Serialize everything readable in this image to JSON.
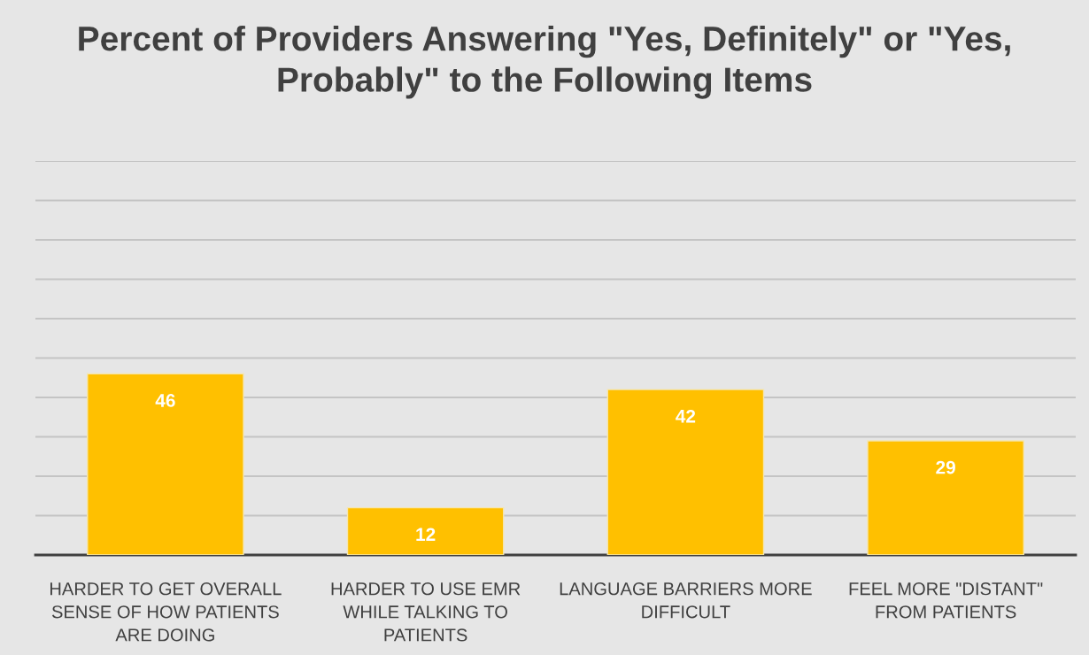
{
  "chart_data": {
    "type": "bar",
    "title": "Percent of Providers Answering \"Yes, Definitely\" or \"Yes, Probably\" to the Following Items",
    "categories": [
      "HARDER TO GET OVERALL SENSE OF HOW PATIENTS ARE DOING",
      "HARDER TO USE EMR WHILE TALKING TO PATIENTS",
      "LANGUAGE BARRIERS MORE DIFFICULT",
      "FEEL MORE \"DISTANT\" FROM PATIENTS"
    ],
    "values": [
      46,
      12,
      42,
      29
    ],
    "color": "#ffc000",
    "ylim": [
      0,
      100
    ],
    "yticks": [
      {
        "value": 0,
        "label": null
      },
      {
        "value": 10,
        "label": null
      },
      {
        "value": 20,
        "label": null
      },
      {
        "value": 30,
        "label": null
      },
      {
        "value": 40,
        "label": null
      },
      {
        "value": 50,
        "label": null
      },
      {
        "value": 60,
        "label": null
      },
      {
        "value": 70,
        "label": null
      },
      {
        "value": 80,
        "label": null
      },
      {
        "value": 90,
        "label": null
      },
      {
        "value": 100,
        "label": null
      }
    ],
    "grid": "y",
    "data_labels": true,
    "tick_labels": "x"
  }
}
